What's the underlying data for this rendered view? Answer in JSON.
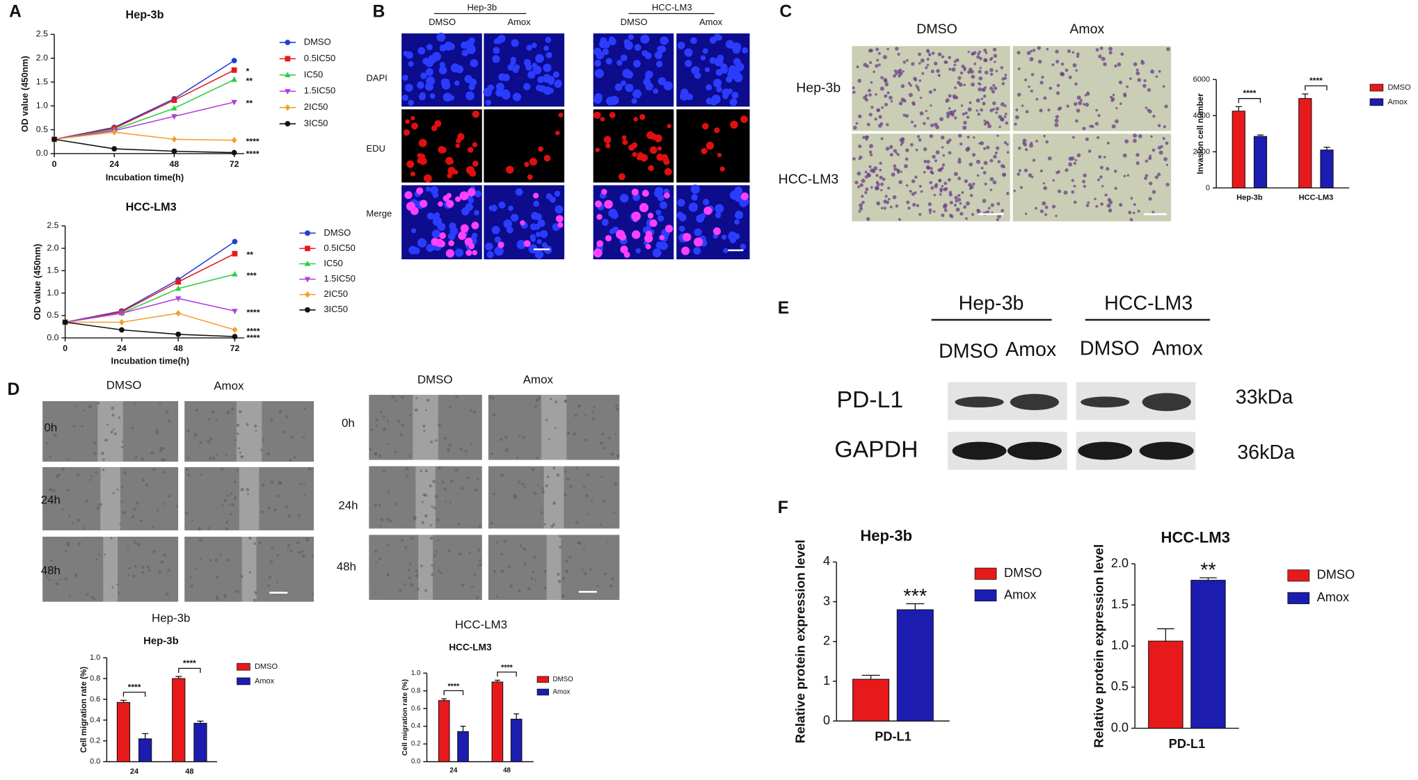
{
  "figure": {
    "letters": [
      "A",
      "B",
      "C",
      "D",
      "E",
      "F"
    ],
    "b": {
      "groups": [
        "Hep-3b",
        "HCC-LM3"
      ],
      "columns": [
        "DMSO",
        "Amox",
        "DMSO",
        "Amox"
      ],
      "rows": [
        "DAPI",
        "EDU",
        "Merge"
      ]
    },
    "c": {
      "columns": [
        "DMSO",
        "Amox"
      ],
      "rows": [
        "Hep-3b",
        "HCC-LM3"
      ]
    },
    "d": {
      "left": {
        "columns": [
          "DMSO",
          "Amox"
        ],
        "rows": [
          "0h",
          "24h",
          "48h"
        ],
        "caption": "Hep-3b"
      },
      "right": {
        "columns": [
          "DMSO",
          "Amox"
        ],
        "rows": [
          "0h",
          "24h",
          "48h"
        ],
        "caption": "HCC-LM3"
      }
    },
    "e": {
      "groups": [
        "Hep-3b",
        "HCC-LM3"
      ],
      "lanes": [
        "DMSO",
        "Amox",
        "DMSO",
        "Amox"
      ],
      "proteins": [
        "PD-L1",
        "GAPDH"
      ],
      "sizes": [
        "33kDa",
        "36kDa"
      ]
    }
  },
  "chart_data": [
    {
      "type": "line",
      "title": "Hep-3b",
      "x": [
        0,
        24,
        48,
        72
      ],
      "xlim": [
        0,
        76
      ],
      "xticks": [
        0,
        24,
        48,
        72
      ],
      "ylim": [
        0,
        2.5
      ],
      "yticks": [
        {
          "value": 0,
          "label": "0.0"
        },
        0.5,
        {
          "value": 1,
          "label": "1.0"
        },
        1.5,
        {
          "value": 2,
          "label": "2.0"
        },
        2.5
      ],
      "xlabel": "Incubation time(h)",
      "ylabel": "OD value (450nm)",
      "series": [
        {
          "name": "DMSO",
          "color": "#1f3fd6",
          "values": [
            0.3,
            0.55,
            1.15,
            1.95
          ]
        },
        {
          "name": "0.5IC50",
          "color": "#e31a1c",
          "values": [
            0.3,
            0.53,
            1.12,
            1.75
          ]
        },
        {
          "name": "IC50",
          "color": "#2ecc40",
          "values": [
            0.3,
            0.5,
            0.95,
            1.55
          ]
        },
        {
          "name": "1.5IC50",
          "color": "#b03fe0",
          "values": [
            0.3,
            0.48,
            0.78,
            1.08
          ]
        },
        {
          "name": "2IC50",
          "color": "#f0a030",
          "values": [
            0.3,
            0.45,
            0.3,
            0.28
          ]
        },
        {
          "name": "3IC50",
          "color": "#111111",
          "values": [
            0.3,
            0.1,
            0.05,
            0.02
          ]
        }
      ],
      "annotations": [
        "*",
        "**",
        "**",
        "****",
        "****"
      ]
    },
    {
      "type": "line",
      "title": "HCC-LM3",
      "x": [
        0,
        24,
        48,
        72
      ],
      "xlim": [
        0,
        76
      ],
      "xticks": [
        0,
        24,
        48,
        72
      ],
      "ylim": [
        0,
        2.5
      ],
      "yticks": [
        {
          "value": 0,
          "label": "0.0"
        },
        0.5,
        {
          "value": 1,
          "label": "1.0"
        },
        1.5,
        {
          "value": 2,
          "label": "2.0"
        },
        2.5
      ],
      "xlabel": "Incubation time(h)",
      "ylabel": "OD value (450nm)",
      "series": [
        {
          "name": "DMSO",
          "color": "#1f3fd6",
          "values": [
            0.35,
            0.6,
            1.3,
            2.15
          ]
        },
        {
          "name": "0.5IC50",
          "color": "#e31a1c",
          "values": [
            0.35,
            0.58,
            1.25,
            1.88
          ]
        },
        {
          "name": "IC50",
          "color": "#2ecc40",
          "values": [
            0.35,
            0.55,
            1.1,
            1.42
          ]
        },
        {
          "name": "1.5IC50",
          "color": "#b03fe0",
          "values": [
            0.35,
            0.55,
            0.88,
            0.6
          ]
        },
        {
          "name": "2IC50",
          "color": "#f0a030",
          "values": [
            0.35,
            0.35,
            0.55,
            0.18
          ]
        },
        {
          "name": "3IC50",
          "color": "#111111",
          "values": [
            0.35,
            0.18,
            0.08,
            0.03
          ]
        }
      ],
      "annotations": [
        "**",
        "***",
        "****",
        "****",
        "****"
      ]
    },
    {
      "type": "bar",
      "categories": [
        "Hep-3b",
        "HCC-LM3"
      ],
      "ylabel": "Invasion cell number",
      "ylim": [
        0,
        6000
      ],
      "yticks": [
        0,
        2000,
        4000,
        6000
      ],
      "series": [
        {
          "name": "DMSO",
          "color": "#e8191b",
          "values": [
            4250,
            4950
          ],
          "errors": [
            250,
            250
          ]
        },
        {
          "name": "Amox",
          "color": "#1c1cb0",
          "values": [
            2850,
            2100
          ],
          "errors": [
            80,
            150
          ]
        }
      ],
      "significance": [
        "****",
        "****"
      ],
      "significance_bracket": true
    },
    {
      "type": "bar",
      "title": "Hep-3b",
      "categories": [
        "24",
        "48"
      ],
      "ylabel": "Cell migration rate (%)",
      "ylim": [
        0,
        1.0
      ],
      "yticks": [
        {
          "value": 0,
          "label": "0.0"
        },
        0.2,
        0.4,
        0.6,
        0.8,
        {
          "value": 1,
          "label": "1.0"
        }
      ],
      "series": [
        {
          "name": "DMSO",
          "color": "#e8191b",
          "values": [
            0.57,
            0.8
          ],
          "errors": [
            0.02,
            0.02
          ]
        },
        {
          "name": "Amox",
          "color": "#1c1cb0",
          "values": [
            0.22,
            0.37
          ],
          "errors": [
            0.05,
            0.02
          ]
        }
      ],
      "significance": [
        "****",
        "****"
      ],
      "significance_bracket": true
    },
    {
      "type": "bar",
      "title": "HCC-LM3",
      "categories": [
        "24",
        "48"
      ],
      "ylabel": "Cell migration rate (%)",
      "ylim": [
        0,
        1.0
      ],
      "yticks": [
        {
          "value": 0,
          "label": "0.0"
        },
        0.2,
        0.4,
        0.6,
        0.8,
        {
          "value": 1,
          "label": "1.0"
        }
      ],
      "series": [
        {
          "name": "DMSO",
          "color": "#e8191b",
          "values": [
            0.69,
            0.9
          ],
          "errors": [
            0.02,
            0.02
          ]
        },
        {
          "name": "Amox",
          "color": "#1c1cb0",
          "values": [
            0.34,
            0.48
          ],
          "errors": [
            0.06,
            0.06
          ]
        }
      ],
      "significance": [
        "****",
        "****"
      ],
      "significance_bracket": true
    },
    {
      "type": "bar",
      "title": "Hep-3b",
      "categories": [
        "PD-L1"
      ],
      "ylabel": "Relative protein expression level",
      "ylim": [
        0,
        4
      ],
      "yticks": [
        0,
        1,
        2,
        3,
        4
      ],
      "series": [
        {
          "name": "DMSO",
          "color": "#e8191b",
          "values": [
            1.05
          ],
          "errors": [
            0.1
          ]
        },
        {
          "name": "Amox",
          "color": "#1c1cb0",
          "values": [
            2.8
          ],
          "errors": [
            0.15
          ]
        }
      ],
      "significance": [
        "***"
      ]
    },
    {
      "type": "bar",
      "title": "HCC-LM3",
      "categories": [
        "PD-L1"
      ],
      "ylabel": "Relative protein expression level",
      "ylim": [
        0,
        2.0
      ],
      "yticks": [
        {
          "value": 0,
          "label": "0.0"
        },
        0.5,
        {
          "value": 1,
          "label": "1.0"
        },
        1.5,
        {
          "value": 2,
          "label": "2.0"
        }
      ],
      "series": [
        {
          "name": "DMSO",
          "color": "#e8191b",
          "values": [
            1.06
          ],
          "errors": [
            0.15
          ]
        },
        {
          "name": "Amox",
          "color": "#1c1cb0",
          "values": [
            1.8
          ],
          "errors": [
            0.03
          ]
        }
      ],
      "significance": [
        "**"
      ]
    }
  ]
}
